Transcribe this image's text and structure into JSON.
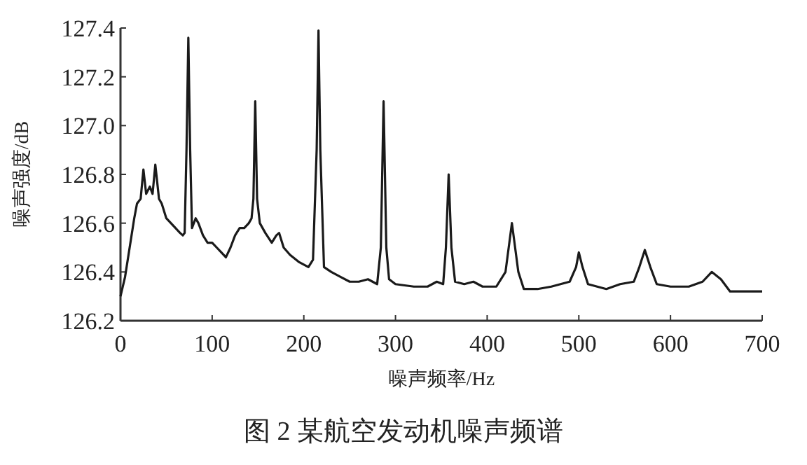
{
  "chart_data": {
    "type": "line",
    "xlabel": "噪声频率/Hz",
    "ylabel": "噪声强度/dB",
    "annotations": [
      "图 2 某航空发动机噪声频谱"
    ],
    "xlim": [
      0,
      700
    ],
    "ylim": [
      126.2,
      127.4
    ],
    "xticks": [
      0,
      100,
      200,
      300,
      400,
      500,
      600,
      700
    ],
    "yticks": [
      126.2,
      126.4,
      126.6,
      126.8,
      {
        "value": 127.0,
        "label": "127.0"
      },
      127.2,
      127.4
    ],
    "series": [
      {
        "color": "#1a1a1a",
        "x": [
          0,
          5,
          10,
          15,
          18,
          22,
          25,
          28,
          32,
          35,
          38,
          42,
          45,
          50,
          55,
          60,
          65,
          68,
          70,
          72,
          74,
          76,
          78,
          82,
          85,
          90,
          95,
          100,
          105,
          110,
          115,
          120,
          125,
          130,
          135,
          140,
          143,
          145,
          147,
          149,
          152,
          158,
          165,
          170,
          173,
          178,
          185,
          195,
          205,
          210,
          214,
          216,
          218,
          222,
          230,
          240,
          250,
          260,
          270,
          280,
          284,
          287,
          290,
          293,
          300,
          320,
          335,
          345,
          352,
          355,
          358,
          361,
          365,
          375,
          385,
          395,
          410,
          420,
          427,
          434,
          440,
          455,
          470,
          490,
          497,
          500,
          504,
          510,
          520,
          530,
          545,
          560,
          566,
          572,
          578,
          585,
          600,
          620,
          635,
          645,
          655,
          665,
          680,
          700
        ],
        "values": [
          126.3,
          126.38,
          126.5,
          126.62,
          126.68,
          126.7,
          126.82,
          126.72,
          126.75,
          126.72,
          126.84,
          126.7,
          126.68,
          126.62,
          126.6,
          126.58,
          126.56,
          126.55,
          126.56,
          126.9,
          127.36,
          126.9,
          126.58,
          126.62,
          126.6,
          126.55,
          126.52,
          126.52,
          126.5,
          126.48,
          126.46,
          126.5,
          126.55,
          126.58,
          126.58,
          126.6,
          126.62,
          126.7,
          127.1,
          126.7,
          126.6,
          126.56,
          126.52,
          126.55,
          126.56,
          126.5,
          126.47,
          126.44,
          126.42,
          126.45,
          126.9,
          127.39,
          126.9,
          126.42,
          126.4,
          126.38,
          126.36,
          126.36,
          126.37,
          126.35,
          126.5,
          127.1,
          126.5,
          126.37,
          126.35,
          126.34,
          126.34,
          126.36,
          126.35,
          126.5,
          126.8,
          126.5,
          126.36,
          126.35,
          126.36,
          126.34,
          126.34,
          126.4,
          126.6,
          126.4,
          126.33,
          126.33,
          126.34,
          126.36,
          126.42,
          126.48,
          126.42,
          126.35,
          126.34,
          126.33,
          126.35,
          126.36,
          126.42,
          126.49,
          126.42,
          126.35,
          126.34,
          126.34,
          126.36,
          126.4,
          126.37,
          126.32,
          126.32,
          126.32
        ]
      }
    ]
  }
}
